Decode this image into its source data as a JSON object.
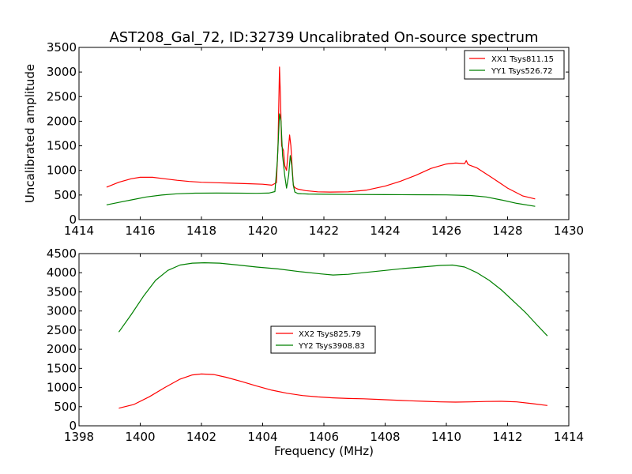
{
  "chart_data": [
    {
      "type": "line",
      "title": "AST208_Gal_72, ID:32739 Uncalibrated On-source spectrum",
      "xlabel": "",
      "ylabel": "Uncalibrated amplitude",
      "xlim": [
        1414,
        1430
      ],
      "ylim": [
        0,
        3500
      ],
      "xticks": [
        "1414",
        "1416",
        "1418",
        "1420",
        "1422",
        "1424",
        "1426",
        "1428",
        "1430"
      ],
      "yticks": [
        "0",
        "500",
        "1000",
        "1500",
        "2000",
        "2500",
        "3000",
        "3500"
      ],
      "grid": false,
      "legend_position": "upper right",
      "series": [
        {
          "name": "XX1 Tsys811.15",
          "color": "#ff0000",
          "x": [
            1414.9,
            1415.3,
            1415.7,
            1416.0,
            1416.4,
            1416.8,
            1417.2,
            1417.6,
            1418.0,
            1418.5,
            1419.0,
            1419.5,
            1420.0,
            1420.3,
            1420.45,
            1420.5,
            1420.55,
            1420.58,
            1420.62,
            1420.68,
            1420.72,
            1420.78,
            1420.82,
            1420.88,
            1420.92,
            1420.96,
            1421.0,
            1421.05,
            1421.15,
            1421.4,
            1421.8,
            1422.2,
            1422.8,
            1423.4,
            1424.0,
            1424.5,
            1425.0,
            1425.5,
            1426.0,
            1426.3,
            1426.6,
            1426.65,
            1426.7,
            1426.75,
            1427.0,
            1427.5,
            1428.0,
            1428.5,
            1428.9
          ],
          "y": [
            660,
            760,
            830,
            860,
            860,
            830,
            800,
            775,
            760,
            750,
            740,
            730,
            720,
            700,
            750,
            1500,
            3100,
            2500,
            1500,
            1400,
            1100,
            1000,
            1300,
            1720,
            1500,
            1100,
            700,
            650,
            620,
            590,
            565,
            560,
            565,
            600,
            680,
            780,
            900,
            1040,
            1130,
            1150,
            1140,
            1200,
            1130,
            1110,
            1050,
            850,
            640,
            480,
            420
          ]
        },
        {
          "name": "YY1 Tsys526.72",
          "color": "#008000",
          "x": [
            1414.9,
            1415.3,
            1415.7,
            1416.2,
            1416.7,
            1417.2,
            1417.8,
            1418.5,
            1419.2,
            1419.8,
            1420.2,
            1420.4,
            1420.48,
            1420.55,
            1420.6,
            1420.65,
            1420.72,
            1420.78,
            1420.85,
            1420.9,
            1420.95,
            1421.0,
            1421.05,
            1421.15,
            1421.5,
            1422.0,
            1423.0,
            1424.0,
            1425.0,
            1426.0,
            1426.8,
            1427.3,
            1427.8,
            1428.3,
            1428.9
          ],
          "y": [
            300,
            350,
            400,
            460,
            500,
            525,
            538,
            540,
            538,
            535,
            540,
            570,
            1200,
            2150,
            2000,
            1300,
            900,
            640,
            900,
            1300,
            1100,
            700,
            560,
            530,
            520,
            515,
            510,
            508,
            505,
            502,
            490,
            460,
            400,
            330,
            270
          ]
        }
      ]
    },
    {
      "type": "line",
      "title": "",
      "xlabel": "Frequency (MHz)",
      "ylabel": "",
      "xlim": [
        1398,
        1414
      ],
      "ylim": [
        0,
        4500
      ],
      "xticks": [
        "1398",
        "1400",
        "1402",
        "1404",
        "1406",
        "1408",
        "1410",
        "1412",
        "1414"
      ],
      "yticks": [
        "0",
        "500",
        "1000",
        "1500",
        "2000",
        "2500",
        "3000",
        "3500",
        "4000",
        "4500"
      ],
      "grid": false,
      "legend_position": "center",
      "series": [
        {
          "name": "XX2 Tsys825.79",
          "color": "#ff0000",
          "x": [
            1399.3,
            1399.8,
            1400.3,
            1400.8,
            1401.3,
            1401.7,
            1402.0,
            1402.4,
            1402.8,
            1403.3,
            1403.8,
            1404.3,
            1404.8,
            1405.3,
            1405.8,
            1406.3,
            1406.8,
            1407.3,
            1407.8,
            1408.3,
            1408.8,
            1409.3,
            1409.8,
            1410.3,
            1410.8,
            1411.3,
            1411.8,
            1412.3,
            1412.8,
            1413.3
          ],
          "y": [
            460,
            560,
            760,
            1000,
            1220,
            1330,
            1355,
            1340,
            1270,
            1160,
            1040,
            930,
            850,
            790,
            755,
            730,
            715,
            705,
            690,
            670,
            655,
            640,
            625,
            620,
            625,
            635,
            640,
            625,
            580,
            530
          ]
        },
        {
          "name": "YY2 Tsys3908.83",
          "color": "#008000",
          "x": [
            1399.3,
            1399.7,
            1400.1,
            1400.5,
            1400.9,
            1401.3,
            1401.7,
            1402.1,
            1402.6,
            1403.2,
            1403.8,
            1404.5,
            1405.2,
            1405.9,
            1406.3,
            1406.8,
            1407.4,
            1408.0,
            1408.6,
            1409.2,
            1409.8,
            1410.2,
            1410.6,
            1411.0,
            1411.4,
            1411.8,
            1412.2,
            1412.6,
            1413.0,
            1413.3
          ],
          "y": [
            2450,
            2900,
            3380,
            3800,
            4060,
            4200,
            4250,
            4260,
            4250,
            4200,
            4150,
            4100,
            4030,
            3970,
            3940,
            3960,
            4010,
            4060,
            4110,
            4150,
            4190,
            4200,
            4150,
            4000,
            3800,
            3550,
            3250,
            2950,
            2600,
            2350
          ]
        }
      ]
    }
  ]
}
